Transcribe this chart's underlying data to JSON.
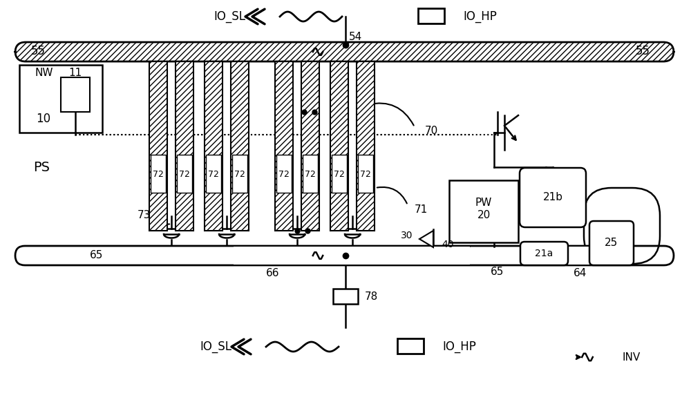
{
  "bg_color": "#ffffff",
  "line_color": "#000000",
  "hatch_pattern": "////",
  "figsize": [
    10.0,
    5.82
  ],
  "dpi": 100,
  "labels": {
    "IO_SL_top": "IO_SL",
    "IO_HP_top": "IO_HP",
    "IO_SL_bot": "IO_SL",
    "IO_HP_bot": "IO_HP",
    "INV": "INV",
    "PS": "PS",
    "NW": "NW",
    "PW": "PW",
    "n10": "10",
    "n11": "11",
    "n20": "20",
    "n21a": "21a",
    "n21b": "21b",
    "n25": "25",
    "n30": "30",
    "n40": "40",
    "n54": "54",
    "n55a": "55",
    "n55b": "55",
    "n64": "64",
    "n65a": "65",
    "n65b": "65",
    "n66": "66",
    "n70": "70",
    "n71": "71",
    "n72": "72",
    "n73": "73",
    "n78": "78"
  }
}
